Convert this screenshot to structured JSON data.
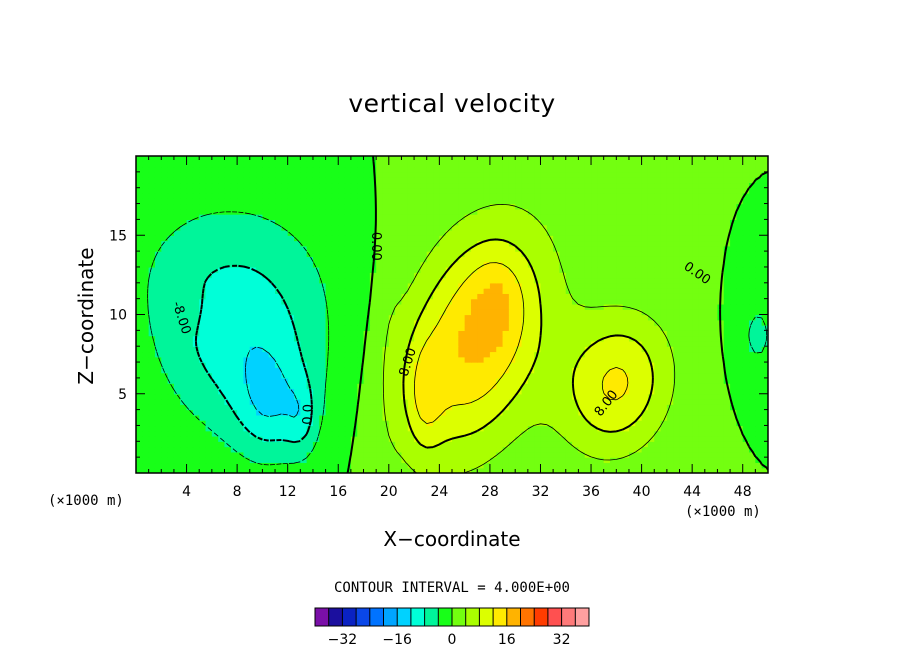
{
  "chart_data": {
    "type": "heatmap",
    "subtype": "filled-contour",
    "title": "vertical velocity",
    "xlabel": "X−coordinate",
    "ylabel": "Z−coordinate",
    "x_unit_left": "(×1000 m)",
    "x_unit_right": "(×1000 m)",
    "xlim": [
      0,
      50
    ],
    "ylim": [
      0,
      20
    ],
    "x_ticks": [
      4,
      8,
      12,
      16,
      20,
      24,
      28,
      32,
      36,
      40,
      44,
      48
    ],
    "y_ticks": [
      5,
      10,
      15
    ],
    "contour_interval_label": "CONTOUR INTERVAL = 4.000E+00",
    "contour_interval": 4,
    "contour_labels": [
      {
        "text": "0.00",
        "x": 19,
        "z": 14.3,
        "rot": 90
      },
      {
        "text": "0.00",
        "x": 44.4,
        "z": 12.6,
        "rot": 35
      },
      {
        "text": "-8.00",
        "x": 3.6,
        "z": 9.8,
        "rot": 72
      },
      {
        "text": "8.00",
        "x": 21.5,
        "z": 7,
        "rot": -72
      },
      {
        "text": "8.00",
        "x": 37.2,
        "z": 4.4,
        "rot": -52
      },
      {
        "text": "0.0",
        "x": 13.6,
        "z": 3.7,
        "rot": -88
      }
    ],
    "colorbar": {
      "levels": [
        -36,
        -32,
        -28,
        -24,
        -20,
        -16,
        -12,
        -8,
        -4,
        0,
        4,
        8,
        12,
        16,
        20,
        24,
        28,
        32,
        36
      ],
      "tick_labels": [
        "−32",
        "−16",
        "0",
        "16",
        "32"
      ],
      "tick_values": [
        -32,
        -16,
        0,
        16,
        32
      ],
      "colors": [
        "#7a0fa8",
        "#1b0f9e",
        "#0a22c2",
        "#0a47e8",
        "#0073ff",
        "#00a5ff",
        "#00d2ff",
        "#00ffd8",
        "#00f59a",
        "#18ff18",
        "#73ff10",
        "#aaff00",
        "#dcff00",
        "#ffea00",
        "#ffb300",
        "#ff7400",
        "#ff3c00",
        "#ff5050",
        "#ff7a7a",
        "#ffa0a0"
      ]
    },
    "features": [
      {
        "sign": -1,
        "x": 8.6,
        "z": 7.8,
        "sx": 4.8,
        "sz": 4.2,
        "amp": 9.5,
        "rot": -22
      },
      {
        "sign": -1,
        "x": 10.6,
        "z": 4.2,
        "sx": 1.8,
        "sz": 2.3,
        "amp": 6.5,
        "rot": 0
      },
      {
        "sign": -1,
        "x": 13.1,
        "z": 3.4,
        "sx": 0.9,
        "sz": 1.7,
        "amp": 5.0,
        "rot": 0
      },
      {
        "sign": -1,
        "x": 7.2,
        "z": 13.6,
        "sx": 6.8,
        "sz": 4.0,
        "amp": 3.6,
        "rot": 0
      },
      {
        "sign": 1,
        "x": 26.8,
        "z": 8.4,
        "sx": 3.7,
        "sz": 5.4,
        "amp": 16.5,
        "rot": -28
      },
      {
        "sign": 1,
        "x": 28.6,
        "z": 10.8,
        "sx": 1.4,
        "sz": 1.9,
        "amp": 4.0,
        "rot": 0
      },
      {
        "sign": 1,
        "x": 22.8,
        "z": 4.8,
        "sx": 1.0,
        "sz": 2.4,
        "amp": 5.5,
        "rot": 0
      },
      {
        "sign": 1,
        "x": 38.0,
        "z": 5.6,
        "sx": 2.9,
        "sz": 3.3,
        "amp": 12.5,
        "rot": -38
      },
      {
        "sign": -1,
        "x": 49.2,
        "z": 8.7,
        "sx": 1.2,
        "sz": 2.0,
        "amp": 4.8,
        "rot": 0
      },
      {
        "sign": 1,
        "x": 3.8,
        "z": 10.5,
        "sx": 0.9,
        "sz": 1.1,
        "amp": 2.5,
        "rot": 0
      },
      {
        "sign": 1,
        "x": 20.0,
        "z": 10.0,
        "sx": 0.8,
        "sz": 8.0,
        "amp": 1.5,
        "rot": 0
      }
    ]
  }
}
